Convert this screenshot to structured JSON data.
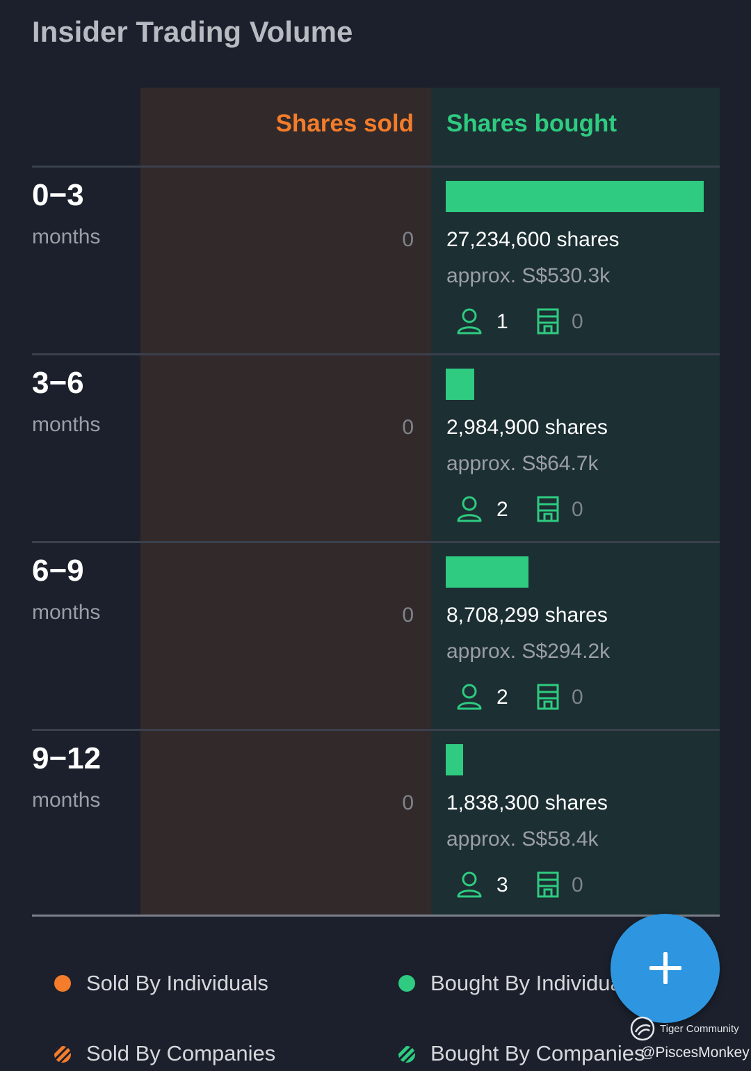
{
  "title": "Insider Trading Volume",
  "columns": {
    "sold": "Shares sold",
    "bought": "Shares bought"
  },
  "colors": {
    "sold": "#f47c2a",
    "bought": "#2ecb80",
    "fab": "#2e96e0"
  },
  "rows": [
    {
      "period": "0−3",
      "unit": "months",
      "sold": "0",
      "bought_fraction": 1.0,
      "shares": "27,234,600 shares",
      "approx": "approx. S$530.3k",
      "individuals": "1",
      "companies": "0"
    },
    {
      "period": "3−6",
      "unit": "months",
      "sold": "0",
      "bought_fraction": 0.11,
      "shares": "2,984,900 shares",
      "approx": "approx. S$64.7k",
      "individuals": "2",
      "companies": "0"
    },
    {
      "period": "6−9",
      "unit": "months",
      "sold": "0",
      "bought_fraction": 0.32,
      "shares": "8,708,299 shares",
      "approx": "approx. S$294.2k",
      "individuals": "2",
      "companies": "0"
    },
    {
      "period": "9−12",
      "unit": "months",
      "sold": "0",
      "bought_fraction": 0.067,
      "shares": "1,838,300 shares",
      "approx": "approx. S$58.4k",
      "individuals": "3",
      "companies": "0"
    }
  ],
  "legend": {
    "sold_individuals": "Sold By Individuals",
    "bought_individuals": "Bought By Individua",
    "sold_companies": "Sold By Companies",
    "bought_companies": "Bought By Companies"
  },
  "icons": {
    "individual": "person-icon",
    "company": "building-icon",
    "fab": "plus-icon"
  },
  "watermark": {
    "brand": "Tiger Community",
    "user": "@PiscesMonkey"
  }
}
